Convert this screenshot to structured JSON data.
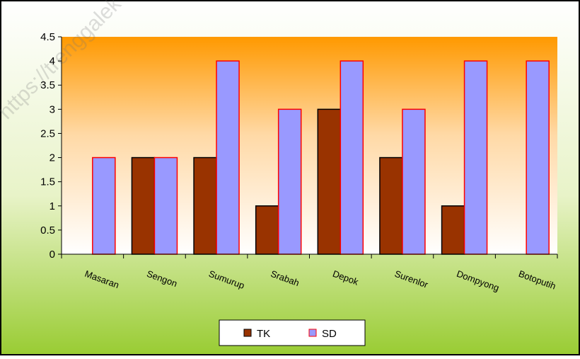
{
  "watermark": "https://trenggalek",
  "chart_data": {
    "type": "bar",
    "title": "",
    "xlabel": "",
    "ylabel": "",
    "categories": [
      "Masaran",
      "Sengon",
      "Sumurup",
      "Srabah",
      "Depok",
      "Surenlor",
      "Dompyong",
      "Botoputih"
    ],
    "series": [
      {
        "name": "TK",
        "color": "#993300",
        "values": [
          0,
          2,
          2,
          1,
          3,
          2,
          1,
          0
        ]
      },
      {
        "name": "SD",
        "color": "#9999FF",
        "values": [
          2,
          2,
          4,
          3,
          4,
          3,
          4,
          4
        ]
      }
    ],
    "ylim": [
      0,
      4.5
    ],
    "yticks": [
      "0",
      "0.5",
      "1",
      "1.5",
      "2",
      "2.5",
      "3",
      "3.5",
      "4",
      "4.5"
    ],
    "grid": false,
    "legend_position": "bottom",
    "bar_outline_color": "#FF0000",
    "background": {
      "plot_top": "#FF9900",
      "plot_bottom": "#FFFFFF",
      "frame_top": "#FFFFFF",
      "frame_bottom": "#99CC33"
    }
  }
}
